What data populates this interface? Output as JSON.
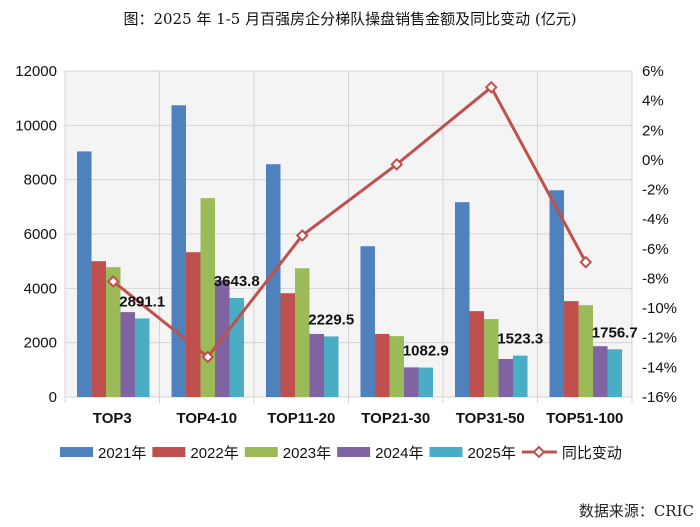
{
  "title": "图：2025 年 1-5 月百强房企分梯队操盘销售金额及同比变动 (亿元)",
  "source": "数据来源：CRIC",
  "chart_data": {
    "type": "bar",
    "title": "图：2025 年 1-5 月百强房企分梯队操盘销售金额及同比变动 (亿元)",
    "categories": [
      "TOP3",
      "TOP4-10",
      "TOP11-20",
      "TOP21-30",
      "TOP31-50",
      "TOP51-100"
    ],
    "series": [
      {
        "name": "2021年",
        "type": "bar",
        "axis": "left",
        "color": "#4f81bd",
        "values": [
          9040,
          10740,
          8570,
          5550,
          7170,
          7610
        ]
      },
      {
        "name": "2022年",
        "type": "bar",
        "axis": "left",
        "color": "#c0504d",
        "values": [
          5000,
          5330,
          3820,
          2320,
          3160,
          3530
        ]
      },
      {
        "name": "2023年",
        "type": "bar",
        "axis": "left",
        "color": "#9bbb59",
        "values": [
          4780,
          7320,
          4740,
          2240,
          2870,
          3380
        ]
      },
      {
        "name": "2024年",
        "type": "bar",
        "axis": "left",
        "color": "#8064a2",
        "values": [
          3125,
          4300,
          2320,
          1090,
          1400,
          1870
        ]
      },
      {
        "name": "2025年",
        "type": "bar",
        "axis": "left",
        "color": "#4bacc6",
        "values": [
          2891.1,
          3643.8,
          2229.5,
          1082.9,
          1523.3,
          1756.7
        ],
        "data_labels": [
          "2891.1",
          "3643.8",
          "2229.5",
          "1082.9",
          "1523.3",
          "1756.7"
        ]
      },
      {
        "name": "同比变动",
        "type": "line",
        "axis": "right",
        "color": "#c0504d",
        "values": [
          -8.2,
          -13.3,
          -5.1,
          -0.3,
          4.9,
          -6.9
        ]
      }
    ],
    "y_left": {
      "range": [
        0,
        12000
      ],
      "ticks": [
        "0",
        "2000",
        "4000",
        "6000",
        "8000",
        "10000",
        "12000"
      ]
    },
    "y_right": {
      "range": [
        -16,
        6
      ],
      "unit": "%",
      "ticks": [
        "-16%",
        "-14%",
        "-12%",
        "-10%",
        "-8%",
        "-6%",
        "-4%",
        "-2%",
        "0%",
        "2%",
        "4%",
        "6%"
      ]
    },
    "grid": true,
    "legend": "bottom"
  }
}
